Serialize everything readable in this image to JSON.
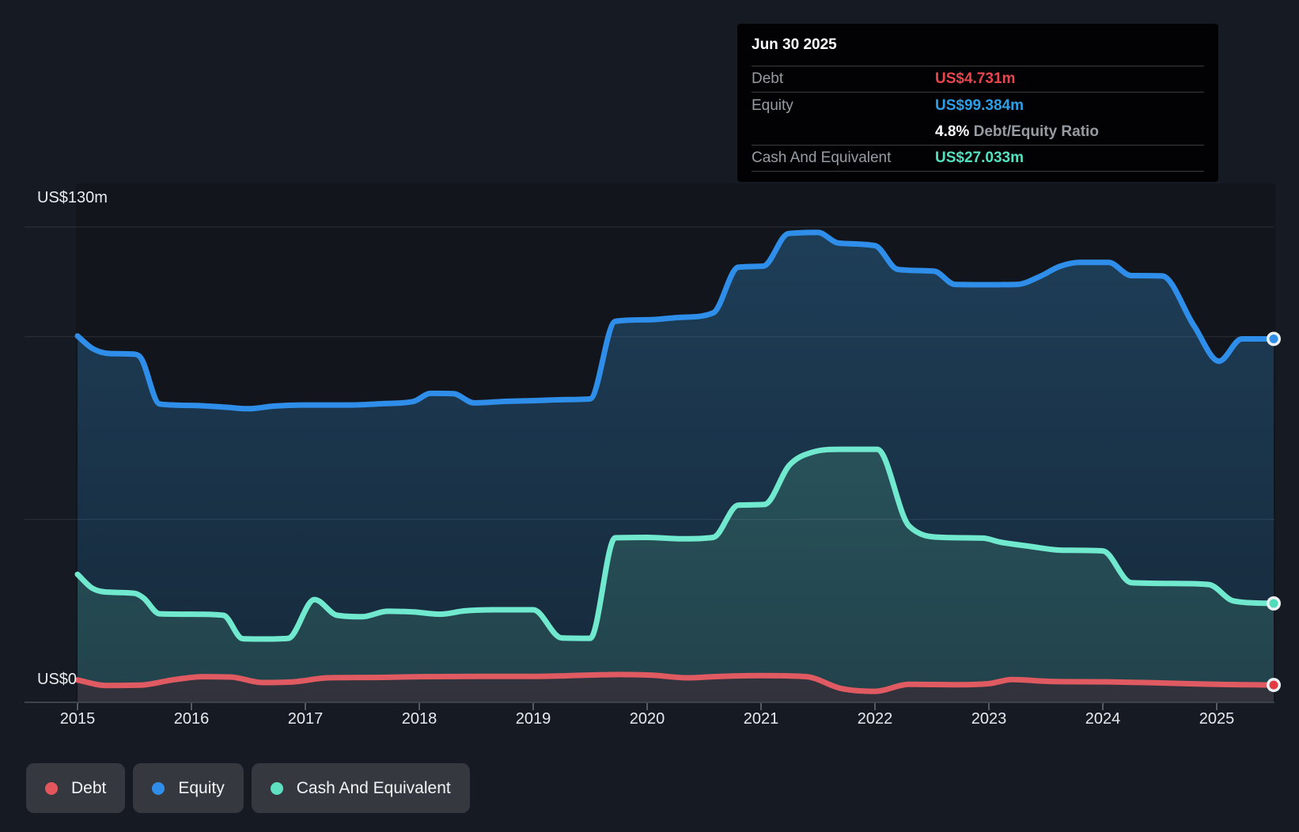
{
  "tooltip": {
    "date": "Jun 30 2025",
    "debt_label": "Debt",
    "debt_value": "US$4.731m",
    "equity_label": "Equity",
    "equity_value": "US$99.384m",
    "ratio_value": "4.8%",
    "ratio_label": "Debt/Equity Ratio",
    "cash_label": "Cash And Equivalent",
    "cash_value": "US$27.033m"
  },
  "axis": {
    "y_top_label": "US$130m",
    "y_bottom_label": "US$0",
    "years": [
      "2015",
      "2016",
      "2017",
      "2018",
      "2019",
      "2020",
      "2021",
      "2022",
      "2023",
      "2024",
      "2025"
    ]
  },
  "legend": [
    {
      "label": "Debt",
      "color": "#e2565c"
    },
    {
      "label": "Equity",
      "color": "#2f8ee9"
    },
    {
      "label": "Cash And Equivalent",
      "color": "#5fe0c1"
    }
  ],
  "colors": {
    "page_bg": "#161b23",
    "plot_shade": "rgba(0,0,0,0.18)",
    "gridline": "rgba(255,255,255,0.10)",
    "axis_line": "#3d434c",
    "tick": "#555b64",
    "debt_value_text": "#e8464d",
    "equity_value_text": "#2e9fe6",
    "cash_value_text": "#55e0c0",
    "marker_ring": "#eaf0f3"
  },
  "chart_data": {
    "type": "area",
    "title": "",
    "xlabel": "",
    "ylabel": "US$m",
    "x_unit": "year",
    "xlim": [
      2015.0,
      2025.5
    ],
    "ylim": [
      0,
      130
    ],
    "gridline_values": [
      130,
      100,
      50
    ],
    "grid": true,
    "legend_position": "bottom-left",
    "last_point_date": "Jun 30 2025",
    "render_order": [
      "Equity",
      "Cash And Equivalent",
      "Debt"
    ],
    "series": [
      {
        "name": "Debt",
        "color": "#e05a61",
        "fill_top": "#4b4956",
        "fill_bottom": "#31323b",
        "marker_color": "#e23b44",
        "last_value_label": "US$4.731m",
        "points": [
          [
            2015.0,
            6.1
          ],
          [
            2015.25,
            4.6
          ],
          [
            2015.55,
            4.7
          ],
          [
            2015.85,
            6.2
          ],
          [
            2016.1,
            7.0
          ],
          [
            2016.35,
            6.9
          ],
          [
            2016.62,
            5.4
          ],
          [
            2016.9,
            5.6
          ],
          [
            2017.2,
            6.7
          ],
          [
            2017.6,
            6.8
          ],
          [
            2018.0,
            7.0
          ],
          [
            2018.5,
            7.1
          ],
          [
            2019.0,
            7.1
          ],
          [
            2019.45,
            7.4
          ],
          [
            2019.75,
            7.6
          ],
          [
            2020.05,
            7.4
          ],
          [
            2020.35,
            6.7
          ],
          [
            2020.65,
            7.1
          ],
          [
            2021.0,
            7.3
          ],
          [
            2021.4,
            7.0
          ],
          [
            2021.7,
            3.8
          ],
          [
            2022.0,
            3.0
          ],
          [
            2022.3,
            4.9
          ],
          [
            2022.7,
            4.8
          ],
          [
            2023.0,
            5.1
          ],
          [
            2023.2,
            6.2
          ],
          [
            2023.55,
            5.7
          ],
          [
            2024.0,
            5.6
          ],
          [
            2024.5,
            5.3
          ],
          [
            2025.0,
            4.9
          ],
          [
            2025.5,
            4.731
          ]
        ]
      },
      {
        "name": "Equity",
        "color": "#2f8ee9",
        "fill_top": "#1e3e58",
        "fill_bottom": "#16293a",
        "marker_color": "#2f8ee9",
        "last_value_label": "US$99.384m",
        "points": [
          [
            2015.0,
            100.2
          ],
          [
            2015.13,
            96.8
          ],
          [
            2015.28,
            95.4
          ],
          [
            2015.5,
            95.2
          ],
          [
            2015.56,
            94.0
          ],
          [
            2015.72,
            81.6
          ],
          [
            2016.0,
            81.2
          ],
          [
            2016.3,
            80.7
          ],
          [
            2016.5,
            80.3
          ],
          [
            2016.72,
            81.0
          ],
          [
            2017.0,
            81.3
          ],
          [
            2017.4,
            81.3
          ],
          [
            2017.7,
            81.7
          ],
          [
            2017.95,
            82.3
          ],
          [
            2018.1,
            84.5
          ],
          [
            2018.3,
            84.4
          ],
          [
            2018.48,
            81.9
          ],
          [
            2018.75,
            82.3
          ],
          [
            2019.0,
            82.5
          ],
          [
            2019.3,
            82.8
          ],
          [
            2019.5,
            83.0
          ],
          [
            2019.72,
            104.2
          ],
          [
            2020.0,
            104.6
          ],
          [
            2020.3,
            105.3
          ],
          [
            2020.58,
            106.5
          ],
          [
            2020.8,
            119.0
          ],
          [
            2021.02,
            119.3
          ],
          [
            2021.24,
            128.2
          ],
          [
            2021.5,
            128.5
          ],
          [
            2021.68,
            125.6
          ],
          [
            2022.0,
            124.9
          ],
          [
            2022.2,
            118.4
          ],
          [
            2022.52,
            117.9
          ],
          [
            2022.7,
            114.3
          ],
          [
            2023.0,
            114.2
          ],
          [
            2023.25,
            114.3
          ],
          [
            2023.45,
            116.5
          ],
          [
            2023.62,
            119.2
          ],
          [
            2023.8,
            120.3
          ],
          [
            2024.05,
            120.3
          ],
          [
            2024.25,
            116.7
          ],
          [
            2024.52,
            116.6
          ],
          [
            2024.8,
            103.0
          ],
          [
            2025.02,
            93.3
          ],
          [
            2025.22,
            99.4
          ],
          [
            2025.5,
            99.384
          ]
        ]
      },
      {
        "name": "Cash And Equivalent",
        "color": "#70e9ce",
        "fill_top": "#2d5f66",
        "fill_bottom": "#22424b",
        "marker_color": "#4fdcba",
        "last_value_label": "US$27.033m",
        "points": [
          [
            2015.0,
            35.0
          ],
          [
            2015.13,
            31.2
          ],
          [
            2015.28,
            30.1
          ],
          [
            2015.5,
            29.8
          ],
          [
            2015.58,
            28.5
          ],
          [
            2015.72,
            24.2
          ],
          [
            2016.0,
            24.1
          ],
          [
            2016.28,
            23.8
          ],
          [
            2016.45,
            17.4
          ],
          [
            2016.65,
            17.3
          ],
          [
            2016.85,
            17.5
          ],
          [
            2017.08,
            28.1
          ],
          [
            2017.28,
            23.8
          ],
          [
            2017.5,
            23.4
          ],
          [
            2017.72,
            24.9
          ],
          [
            2017.95,
            24.7
          ],
          [
            2018.18,
            24.1
          ],
          [
            2018.4,
            25.0
          ],
          [
            2018.65,
            25.3
          ],
          [
            2019.0,
            25.3
          ],
          [
            2019.25,
            17.6
          ],
          [
            2019.5,
            17.5
          ],
          [
            2019.72,
            45.0
          ],
          [
            2020.0,
            45.1
          ],
          [
            2020.3,
            44.7
          ],
          [
            2020.58,
            45.1
          ],
          [
            2020.8,
            53.9
          ],
          [
            2021.03,
            54.1
          ],
          [
            2021.25,
            64.9
          ],
          [
            2021.45,
            68.4
          ],
          [
            2021.7,
            69.2
          ],
          [
            2022.02,
            69.2
          ],
          [
            2022.3,
            48.2
          ],
          [
            2022.6,
            45.1
          ],
          [
            2022.95,
            44.9
          ],
          [
            2023.1,
            43.8
          ],
          [
            2023.35,
            42.7
          ],
          [
            2023.65,
            41.6
          ],
          [
            2024.0,
            41.4
          ],
          [
            2024.25,
            32.7
          ],
          [
            2024.6,
            32.5
          ],
          [
            2024.93,
            32.2
          ],
          [
            2025.15,
            27.7
          ],
          [
            2025.5,
            27.033
          ]
        ]
      }
    ]
  }
}
